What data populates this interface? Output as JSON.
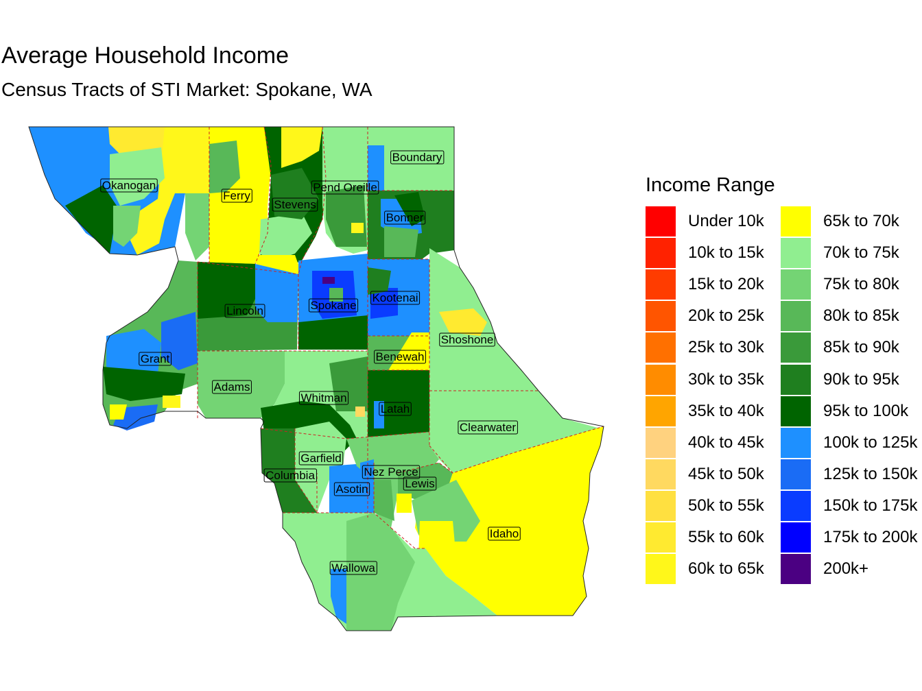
{
  "title": "Average Household Income",
  "subtitle": "Census Tracts of STI Market: Spokane, WA",
  "legend": {
    "title": "Income Range",
    "items": [
      {
        "label": "Under 10k",
        "color": "#ff0000"
      },
      {
        "label": "10k to 15k",
        "color": "#ff2200"
      },
      {
        "label": "15k to 20k",
        "color": "#ff3c00"
      },
      {
        "label": "20k to 25k",
        "color": "#ff5500"
      },
      {
        "label": "25k to 30k",
        "color": "#ff7000"
      },
      {
        "label": "30k to 35k",
        "color": "#ff8c00"
      },
      {
        "label": "35k to 40k",
        "color": "#ffa500"
      },
      {
        "label": "40k to 45k",
        "color": "#ffd27f"
      },
      {
        "label": "45k to 50k",
        "color": "#ffd960"
      },
      {
        "label": "50k to 55k",
        "color": "#ffe040"
      },
      {
        "label": "55k to 60k",
        "color": "#ffea30"
      },
      {
        "label": "60k to 65k",
        "color": "#fff71a"
      },
      {
        "label": "65k to 70k",
        "color": "#ffff00"
      },
      {
        "label": "70k to 75k",
        "color": "#90ee90"
      },
      {
        "label": "75k to 80k",
        "color": "#74d474"
      },
      {
        "label": "80k to 85k",
        "color": "#58b858"
      },
      {
        "label": "85k to 90k",
        "color": "#3a9a3a"
      },
      {
        "label": "90k to 95k",
        "color": "#1f7f1f"
      },
      {
        "label": "95k to 100k",
        "color": "#006400"
      },
      {
        "label": "100k to 125k",
        "color": "#1e90ff"
      },
      {
        "label": "125k to 150k",
        "color": "#1a6cf5"
      },
      {
        "label": "150k to 175k",
        "color": "#0a3cff"
      },
      {
        "label": "175k to 200k",
        "color": "#0000ff"
      },
      {
        "label": "200k+",
        "color": "#4b0082"
      }
    ]
  },
  "counties": [
    "Okanogan",
    "Ferry",
    "Stevens",
    "Pend Oreille",
    "Boundary",
    "Bonner",
    "Lincoln",
    "Spokane",
    "Kootenai",
    "Shoshone",
    "Grant",
    "Benewah",
    "Adams",
    "Whitman",
    "Latah",
    "Clearwater",
    "Garfield",
    "Columbia",
    "Nez Perce",
    "Asotin",
    "Lewis",
    "Idaho",
    "Wallowa"
  ]
}
